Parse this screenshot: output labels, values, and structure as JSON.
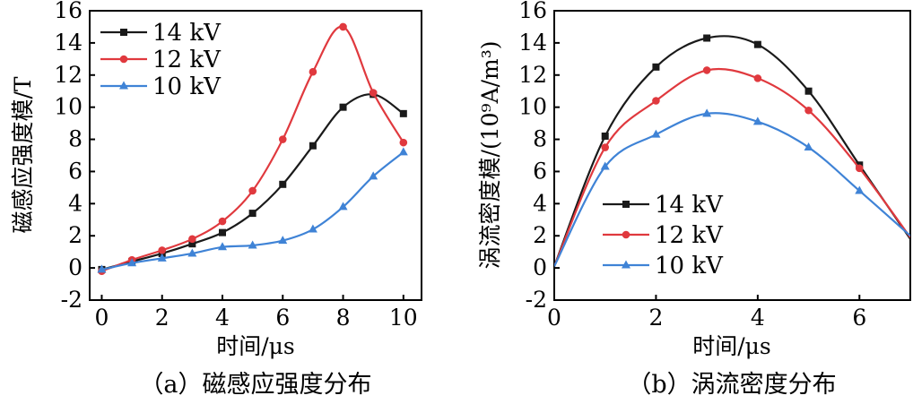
{
  "chart_data": [
    {
      "type": "line",
      "xlabel": "时间/μs",
      "ylabel": "磁感应强度模/T",
      "caption": "（a）磁感应强度分布",
      "xlim": [
        -0.4,
        10.6
      ],
      "ylim": [
        -2,
        16
      ],
      "xticks": [
        "0",
        "2",
        "4",
        "6",
        "8",
        "10"
      ],
      "yticks": [
        "-2",
        "0",
        "2",
        "4",
        "6",
        "8",
        "10",
        "12",
        "14",
        "16"
      ],
      "grid": false,
      "legend_position": "top-left",
      "series": [
        {
          "name": "14 kV",
          "color": "#1a1a1a",
          "marker": "square",
          "x": [
            0,
            1,
            2,
            3,
            4,
            5,
            6,
            7,
            8,
            9,
            10
          ],
          "y": [
            -0.1,
            0.4,
            0.9,
            1.5,
            2.2,
            3.4,
            5.2,
            7.6,
            10.0,
            10.8,
            9.6
          ]
        },
        {
          "name": "12 kV",
          "color": "#e0393e",
          "marker": "circle",
          "x": [
            0,
            1,
            2,
            3,
            4,
            5,
            6,
            7,
            8,
            9,
            10
          ],
          "y": [
            -0.2,
            0.5,
            1.1,
            1.8,
            2.9,
            4.8,
            8.0,
            12.2,
            15.0,
            10.9,
            7.8
          ]
        },
        {
          "name": "10 kV",
          "color": "#3f83d6",
          "marker": "triangle",
          "x": [
            0,
            1,
            2,
            3,
            4,
            5,
            6,
            7,
            8,
            9,
            10
          ],
          "y": [
            -0.1,
            0.3,
            0.6,
            0.9,
            1.3,
            1.4,
            1.7,
            2.4,
            3.8,
            5.7,
            7.2
          ]
        }
      ]
    },
    {
      "type": "line",
      "xlabel": "时间/μs",
      "ylabel": "涡流密度模/(10⁹A/m³)",
      "caption": "（b）涡流密度分布",
      "xlim": [
        0,
        7
      ],
      "ylim": [
        -2,
        16
      ],
      "xticks": [
        "0",
        "2",
        "4",
        "6"
      ],
      "yticks": [
        "-2",
        "0",
        "2",
        "4",
        "6",
        "8",
        "10",
        "12",
        "14",
        "16"
      ],
      "grid": false,
      "legend_position": "bottom-left",
      "series": [
        {
          "name": "14 kV",
          "color": "#1a1a1a",
          "marker": "square",
          "x": [
            0,
            1,
            2,
            3,
            4,
            5,
            6,
            7
          ],
          "y": [
            0.1,
            8.2,
            12.5,
            14.3,
            13.9,
            11.0,
            6.4,
            1.8
          ]
        },
        {
          "name": "12 kV",
          "color": "#e0393e",
          "marker": "circle",
          "x": [
            0,
            1,
            2,
            3,
            4,
            5,
            6,
            7
          ],
          "y": [
            0.1,
            7.5,
            10.4,
            12.3,
            11.8,
            9.8,
            6.2,
            1.9
          ]
        },
        {
          "name": "10 kV",
          "color": "#3f83d6",
          "marker": "triangle",
          "x": [
            0,
            1,
            2,
            3,
            4,
            5,
            6,
            7
          ],
          "y": [
            0.1,
            6.3,
            8.3,
            9.6,
            9.1,
            7.5,
            4.8,
            2.0
          ]
        }
      ]
    }
  ]
}
